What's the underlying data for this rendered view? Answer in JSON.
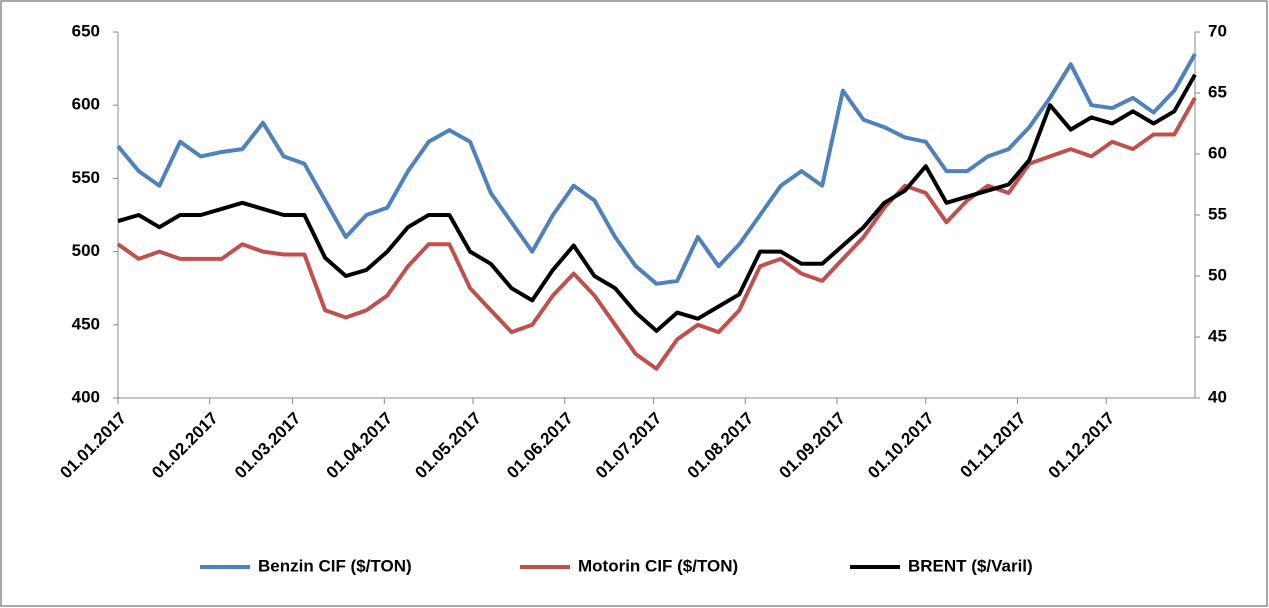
{
  "chart_data": {
    "type": "line",
    "x": [
      "01.01.2017",
      "08.01.2017",
      "15.01.2017",
      "22.01.2017",
      "29.01.2017",
      "05.02.2017",
      "12.02.2017",
      "19.02.2017",
      "26.02.2017",
      "05.03.2017",
      "12.03.2017",
      "19.03.2017",
      "26.03.2017",
      "02.04.2017",
      "09.04.2017",
      "16.04.2017",
      "23.04.2017",
      "30.04.2017",
      "07.05.2017",
      "14.05.2017",
      "21.05.2017",
      "28.05.2017",
      "04.06.2017",
      "11.06.2017",
      "18.06.2017",
      "25.06.2017",
      "02.07.2017",
      "09.07.2017",
      "16.07.2017",
      "23.07.2017",
      "30.07.2017",
      "06.08.2017",
      "13.08.2017",
      "20.08.2017",
      "27.08.2017",
      "03.09.2017",
      "10.09.2017",
      "17.09.2017",
      "24.09.2017",
      "01.10.2017",
      "08.10.2017",
      "15.10.2017",
      "22.10.2017",
      "29.10.2017",
      "05.11.2017",
      "12.11.2017",
      "19.11.2017",
      "26.11.2017",
      "03.12.2017",
      "10.12.2017",
      "17.12.2017",
      "24.12.2017",
      "31.12.2017"
    ],
    "series": [
      {
        "name": "Benzin CIF ($/TON)",
        "color": "#4f81bd",
        "values": [
          572,
          555,
          545,
          575,
          565,
          568,
          570,
          588,
          565,
          560,
          535,
          510,
          525,
          530,
          555,
          575,
          583,
          575,
          540,
          520,
          500,
          525,
          545,
          535,
          510,
          490,
          478,
          480,
          510,
          490,
          505,
          525,
          545,
          555,
          545,
          610,
          590,
          585,
          578,
          575,
          555,
          555,
          565,
          570,
          585,
          605,
          628,
          600,
          598,
          605,
          595,
          610,
          635
        ]
      },
      {
        "name": "Motorin CIF ($/TON)",
        "color": "#c0504d",
        "values": [
          505,
          495,
          500,
          495,
          495,
          495,
          505,
          500,
          498,
          498,
          460,
          455,
          460,
          470,
          490,
          505,
          505,
          475,
          460,
          445,
          450,
          470,
          485,
          470,
          450,
          430,
          420,
          440,
          450,
          445,
          460,
          490,
          495,
          485,
          480,
          495,
          510,
          530,
          545,
          540,
          520,
          535,
          545,
          540,
          560,
          565,
          570,
          565,
          575,
          570,
          580,
          580,
          605
        ]
      },
      {
        "name": "BRENT ($/Varil)",
        "color": "#000000",
        "axis": "y2",
        "values": [
          54.5,
          55,
          54,
          55,
          55,
          55.5,
          56,
          55.5,
          55,
          55,
          51.5,
          50,
          50.5,
          52,
          54,
          55,
          55,
          52,
          51,
          49,
          48,
          50.5,
          52.5,
          50,
          49,
          47,
          45.5,
          47,
          46.5,
          47.5,
          48.5,
          52,
          52,
          51,
          51,
          52.5,
          54,
          56,
          57,
          59,
          56,
          56.5,
          57,
          57.5,
          59.5,
          64,
          62,
          63,
          62.5,
          63.5,
          62.5,
          63.5,
          66.5
        ]
      }
    ],
    "xlim": [
      "01.01.2017",
      "31.12.2017"
    ],
    "xticks": [
      "01.01.2017",
      "01.02.2017",
      "01.03.2017",
      "01.04.2017",
      "01.05.2017",
      "01.06.2017",
      "01.07.2017",
      "01.08.2017",
      "01.09.2017",
      "01.10.2017",
      "01.11.2017",
      "01.12.2017"
    ],
    "ylim": [
      400,
      650
    ],
    "yticks": [
      400,
      450,
      500,
      550,
      600,
      650
    ],
    "y2lim": [
      40,
      70
    ],
    "y2ticks": [
      40,
      45,
      50,
      55,
      60,
      65,
      70
    ],
    "legend": "bottom"
  }
}
